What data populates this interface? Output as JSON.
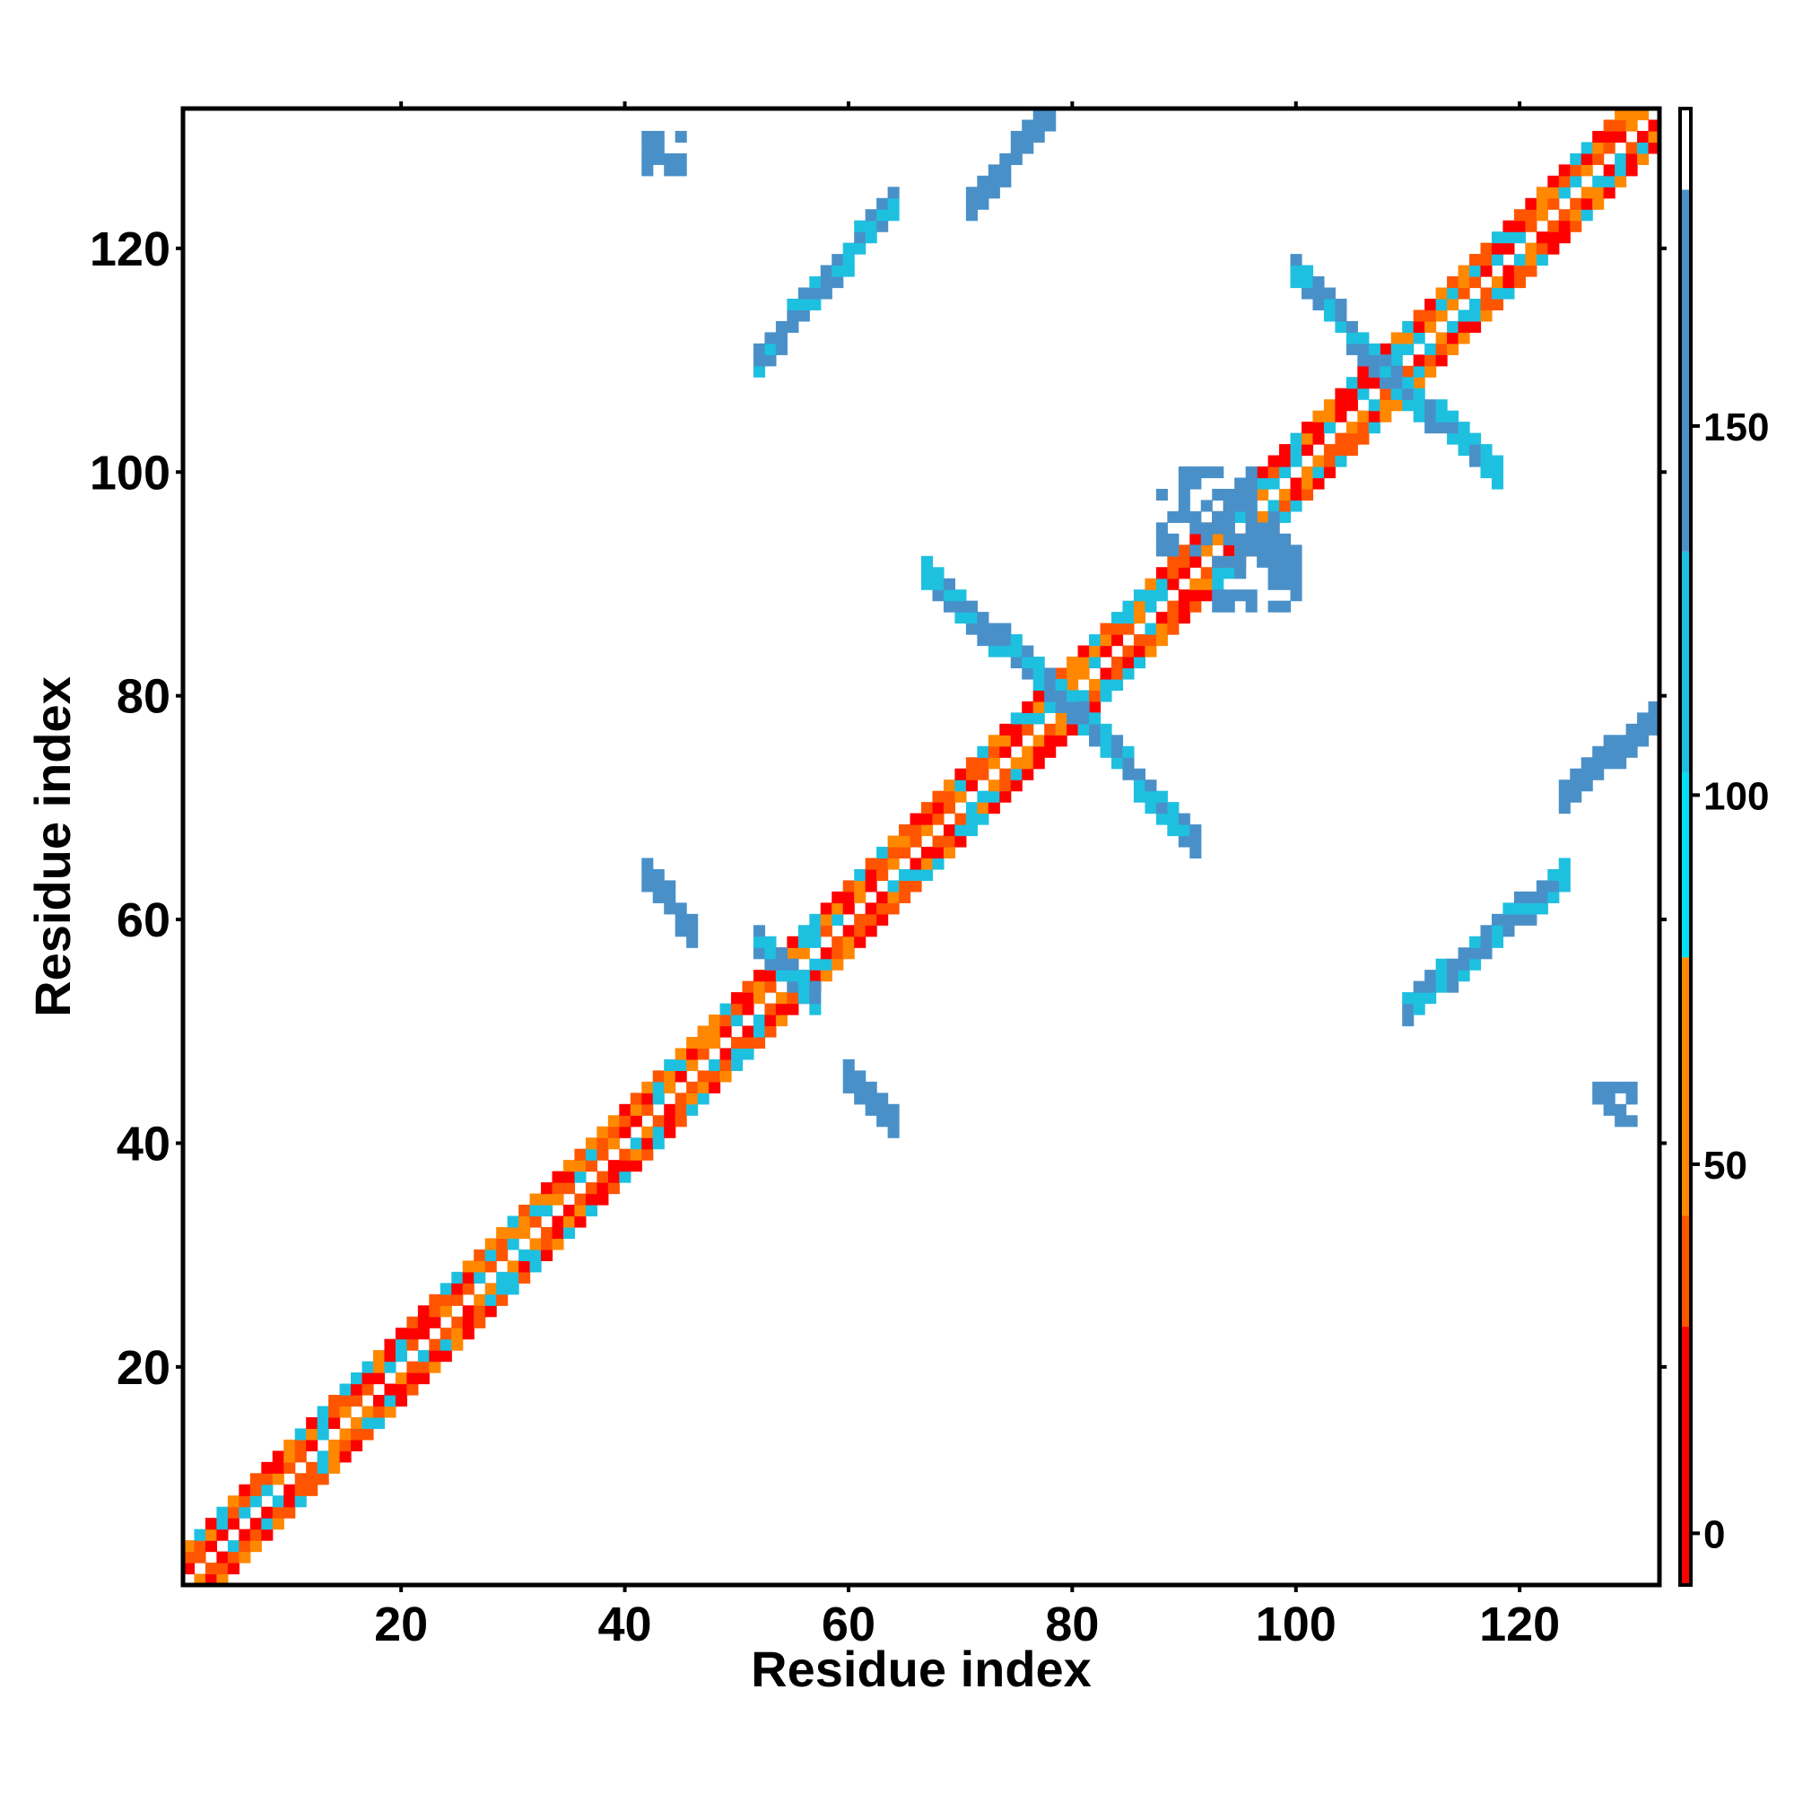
{
  "chart_data": {
    "type": "heatmap",
    "title": "",
    "xlabel": "Residue index",
    "ylabel": "Residue index",
    "xlim": [
      0.5,
      132.5
    ],
    "ylim": [
      0.5,
      132.5
    ],
    "xticks": [
      20,
      40,
      60,
      80,
      100,
      120
    ],
    "yticks": [
      20,
      40,
      60,
      80,
      100,
      120
    ],
    "grid": false,
    "colorbar": {
      "ticks": [
        0,
        50,
        100,
        150
      ],
      "range": [
        -7,
        193
      ],
      "bands": [
        {
          "from": -7,
          "to": 28,
          "color": "#ff0000"
        },
        {
          "from": 28,
          "to": 43,
          "color": "#ff5500"
        },
        {
          "from": 43,
          "to": 78,
          "color": "#ff8800"
        },
        {
          "from": 78,
          "to": 103,
          "color": "#00e0f0"
        },
        {
          "from": 103,
          "to": 133,
          "color": "#1ec0e0"
        },
        {
          "from": 133,
          "to": 182,
          "color": "#4a90c8"
        },
        {
          "from": 182,
          "to": 193,
          "color": "#ffffff"
        }
      ]
    },
    "regions": [
      {
        "name": "diagonal",
        "i": [
          1,
          132
        ],
        "j_offset": [
          -3,
          3
        ],
        "values": [
          10,
          30,
          60,
          120
        ]
      },
      {
        "name": "antiparallel",
        "i": [
          52,
          57
        ],
        "j": [
          53,
          58
        ],
        "values": [
          120,
          150
        ]
      },
      {
        "name": "antiparallel",
        "i": [
          42,
          46
        ],
        "j": [
          59,
          64
        ],
        "values": [
          150
        ]
      },
      {
        "name": "antiparallel",
        "i": [
          60,
          64
        ],
        "j": [
          42,
          46
        ],
        "values": [
          150
        ]
      },
      {
        "name": "antiparallel",
        "i": [
          67,
          80
        ],
        "j": [
          79,
          91
        ],
        "values": [
          120,
          150
        ]
      },
      {
        "name": "antiparallel",
        "i": [
          79,
          91
        ],
        "j": [
          67,
          80
        ],
        "values": [
          120,
          150
        ]
      },
      {
        "name": "antiparallel",
        "i": [
          100,
          109
        ],
        "j": [
          108,
          118
        ],
        "values": [
          120,
          150
        ]
      },
      {
        "name": "antiparallel",
        "i": [
          108,
          118
        ],
        "j": [
          100,
          109
        ],
        "values": [
          120,
          150
        ]
      },
      {
        "name": "parallel",
        "i": [
          52,
          64
        ],
        "j": [
          110,
          124
        ],
        "values": [
          120,
          150
        ]
      },
      {
        "name": "parallel",
        "i": [
          110,
          124
        ],
        "j": [
          52,
          64
        ],
        "values": [
          120,
          150
        ]
      },
      {
        "name": "parallel",
        "i": [
          71,
          78
        ],
        "j": [
          124,
          132
        ],
        "values": [
          150
        ]
      },
      {
        "name": "parallel",
        "i": [
          124,
          132
        ],
        "j": [
          71,
          78
        ],
        "values": [
          150
        ]
      },
      {
        "name": "local",
        "i": [
          88,
          96
        ],
        "j": [
          93,
          100
        ],
        "values": [
          150
        ]
      },
      {
        "name": "local",
        "i": [
          93,
          100
        ],
        "j": [
          88,
          96
        ],
        "values": [
          150
        ]
      },
      {
        "name": "local",
        "i": [
          42,
          45
        ],
        "j": [
          127,
          130
        ],
        "values": [
          150
        ]
      },
      {
        "name": "local",
        "i": [
          127,
          130
        ],
        "j": [
          42,
          45
        ],
        "values": [
          150
        ]
      }
    ]
  }
}
